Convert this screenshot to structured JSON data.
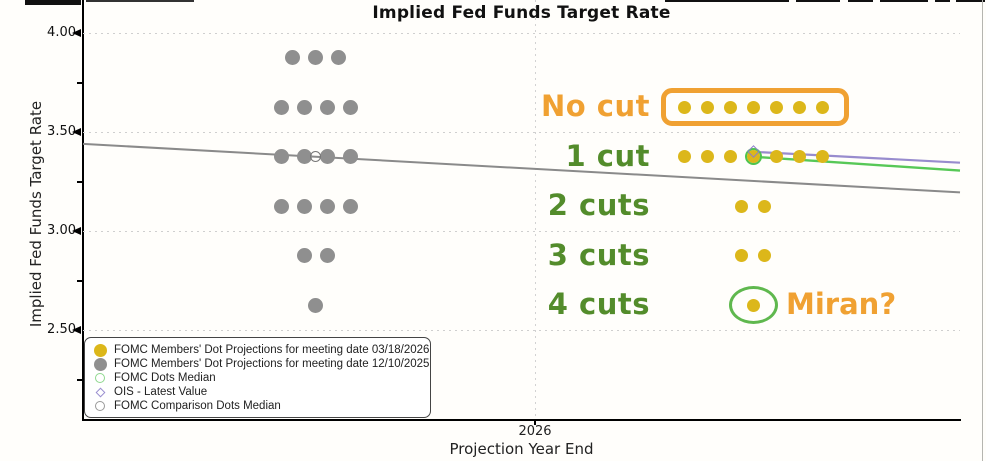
{
  "chart_data": {
    "type": "scatter",
    "title": "Implied Fed Funds Target Rate",
    "ylabel": "Implied Fed Funds Target Rate",
    "xlabel": "Projection Year End",
    "x_categories": [
      "2026"
    ],
    "y_ticks": [
      4.0,
      3.5,
      3.0,
      2.5
    ],
    "y_minor_ticks": [
      3.75,
      3.25,
      2.75,
      2.25
    ],
    "ylim": [
      2.05,
      4.17
    ],
    "grid": "dotted horizontal at y ticks, dotted vertical at 2026",
    "series": [
      {
        "name": "FOMC Members' Dot Projections for meeting date 03/18/2026",
        "marker": "filled-circle",
        "color": "#dcb71a",
        "dot_rows": [
          {
            "value": 3.625,
            "count": 7,
            "scenario": "No cut"
          },
          {
            "value": 3.375,
            "count": 7,
            "scenario": "1 cut"
          },
          {
            "value": 3.125,
            "count": 2,
            "scenario": "2 cuts"
          },
          {
            "value": 2.875,
            "count": 2,
            "scenario": "3 cuts"
          },
          {
            "value": 2.625,
            "count": 1,
            "scenario": "4 cuts"
          }
        ]
      },
      {
        "name": "FOMC Members' Dot Projections for meeting date 12/10/2025",
        "marker": "filled-circle",
        "color": "#8f8f8f",
        "dot_rows": [
          {
            "value": 3.875,
            "count": 3
          },
          {
            "value": 3.625,
            "count": 4
          },
          {
            "value": 3.375,
            "count": 4
          },
          {
            "value": 3.125,
            "count": 4
          },
          {
            "value": 2.875,
            "count": 2
          },
          {
            "value": 2.625,
            "count": 1
          }
        ]
      }
    ],
    "markers": [
      {
        "name": "FOMC Dots Median",
        "shape": "open-circle",
        "color": "#4ec44e",
        "value": 3.375,
        "cluster": "2026"
      },
      {
        "name": "OIS - Latest Value",
        "shape": "open-diamond",
        "color": "#8d7fc9",
        "value": 3.4,
        "cluster": "2026"
      },
      {
        "name": "FOMC Comparison Dots Median",
        "shape": "open-circle",
        "color": "#777777",
        "value": 3.375,
        "cluster": "2025"
      }
    ],
    "lines": [
      {
        "name": "FOMC Comparison Dots Median trend",
        "color": "#8a8a8a",
        "width": 2,
        "span": "full",
        "from_value": 3.44,
        "to_value": 3.195
      },
      {
        "name": "OIS - Latest Value trend",
        "color": "#988cce",
        "width": 2.2,
        "span": "from_median",
        "from_value": 3.4,
        "to_value": 3.345
      },
      {
        "name": "FOMC Dots Median trend",
        "color": "#57c857",
        "width": 2.4,
        "span": "from_median",
        "from_value": 3.375,
        "to_value": 3.305
      }
    ],
    "annotations": {
      "row_labels": [
        {
          "text": "No cut",
          "value": 3.625,
          "color": "#f0a132"
        },
        {
          "text": "1 cut",
          "value": 3.375,
          "color": "#538c2b"
        },
        {
          "text": "2 cuts",
          "value": 3.125,
          "color": "#538c2b"
        },
        {
          "text": "3 cuts",
          "value": 2.875,
          "color": "#538c2b"
        },
        {
          "text": "4 cuts",
          "value": 2.625,
          "color": "#538c2b"
        }
      ],
      "miran_label": {
        "text": "Miran?",
        "value": 2.625,
        "color": "#f0a132"
      },
      "no_cut_box": {
        "value": 3.625,
        "color": "#f0a132"
      },
      "miran_ellipse": {
        "value": 2.625,
        "color": "#5fb84e"
      }
    },
    "legend": {
      "position": "bottom-left",
      "items": [
        {
          "marker": "filled-circle",
          "color": "#dcb71a",
          "label": "FOMC Members' Dot Projections for meeting date 03/18/2026"
        },
        {
          "marker": "filled-circle",
          "color": "#8f8f8f",
          "label": "FOMC Members' Dot Projections for meeting date 12/10/2025"
        },
        {
          "marker": "open-circle",
          "color": "#8ed88e",
          "label": "FOMC Dots Median"
        },
        {
          "marker": "open-diamond",
          "color": "#9a8fd0",
          "label": "OIS - Latest Value"
        },
        {
          "marker": "open-circle",
          "color": "#999999",
          "label": "FOMC Comparison Dots Median"
        }
      ]
    }
  }
}
